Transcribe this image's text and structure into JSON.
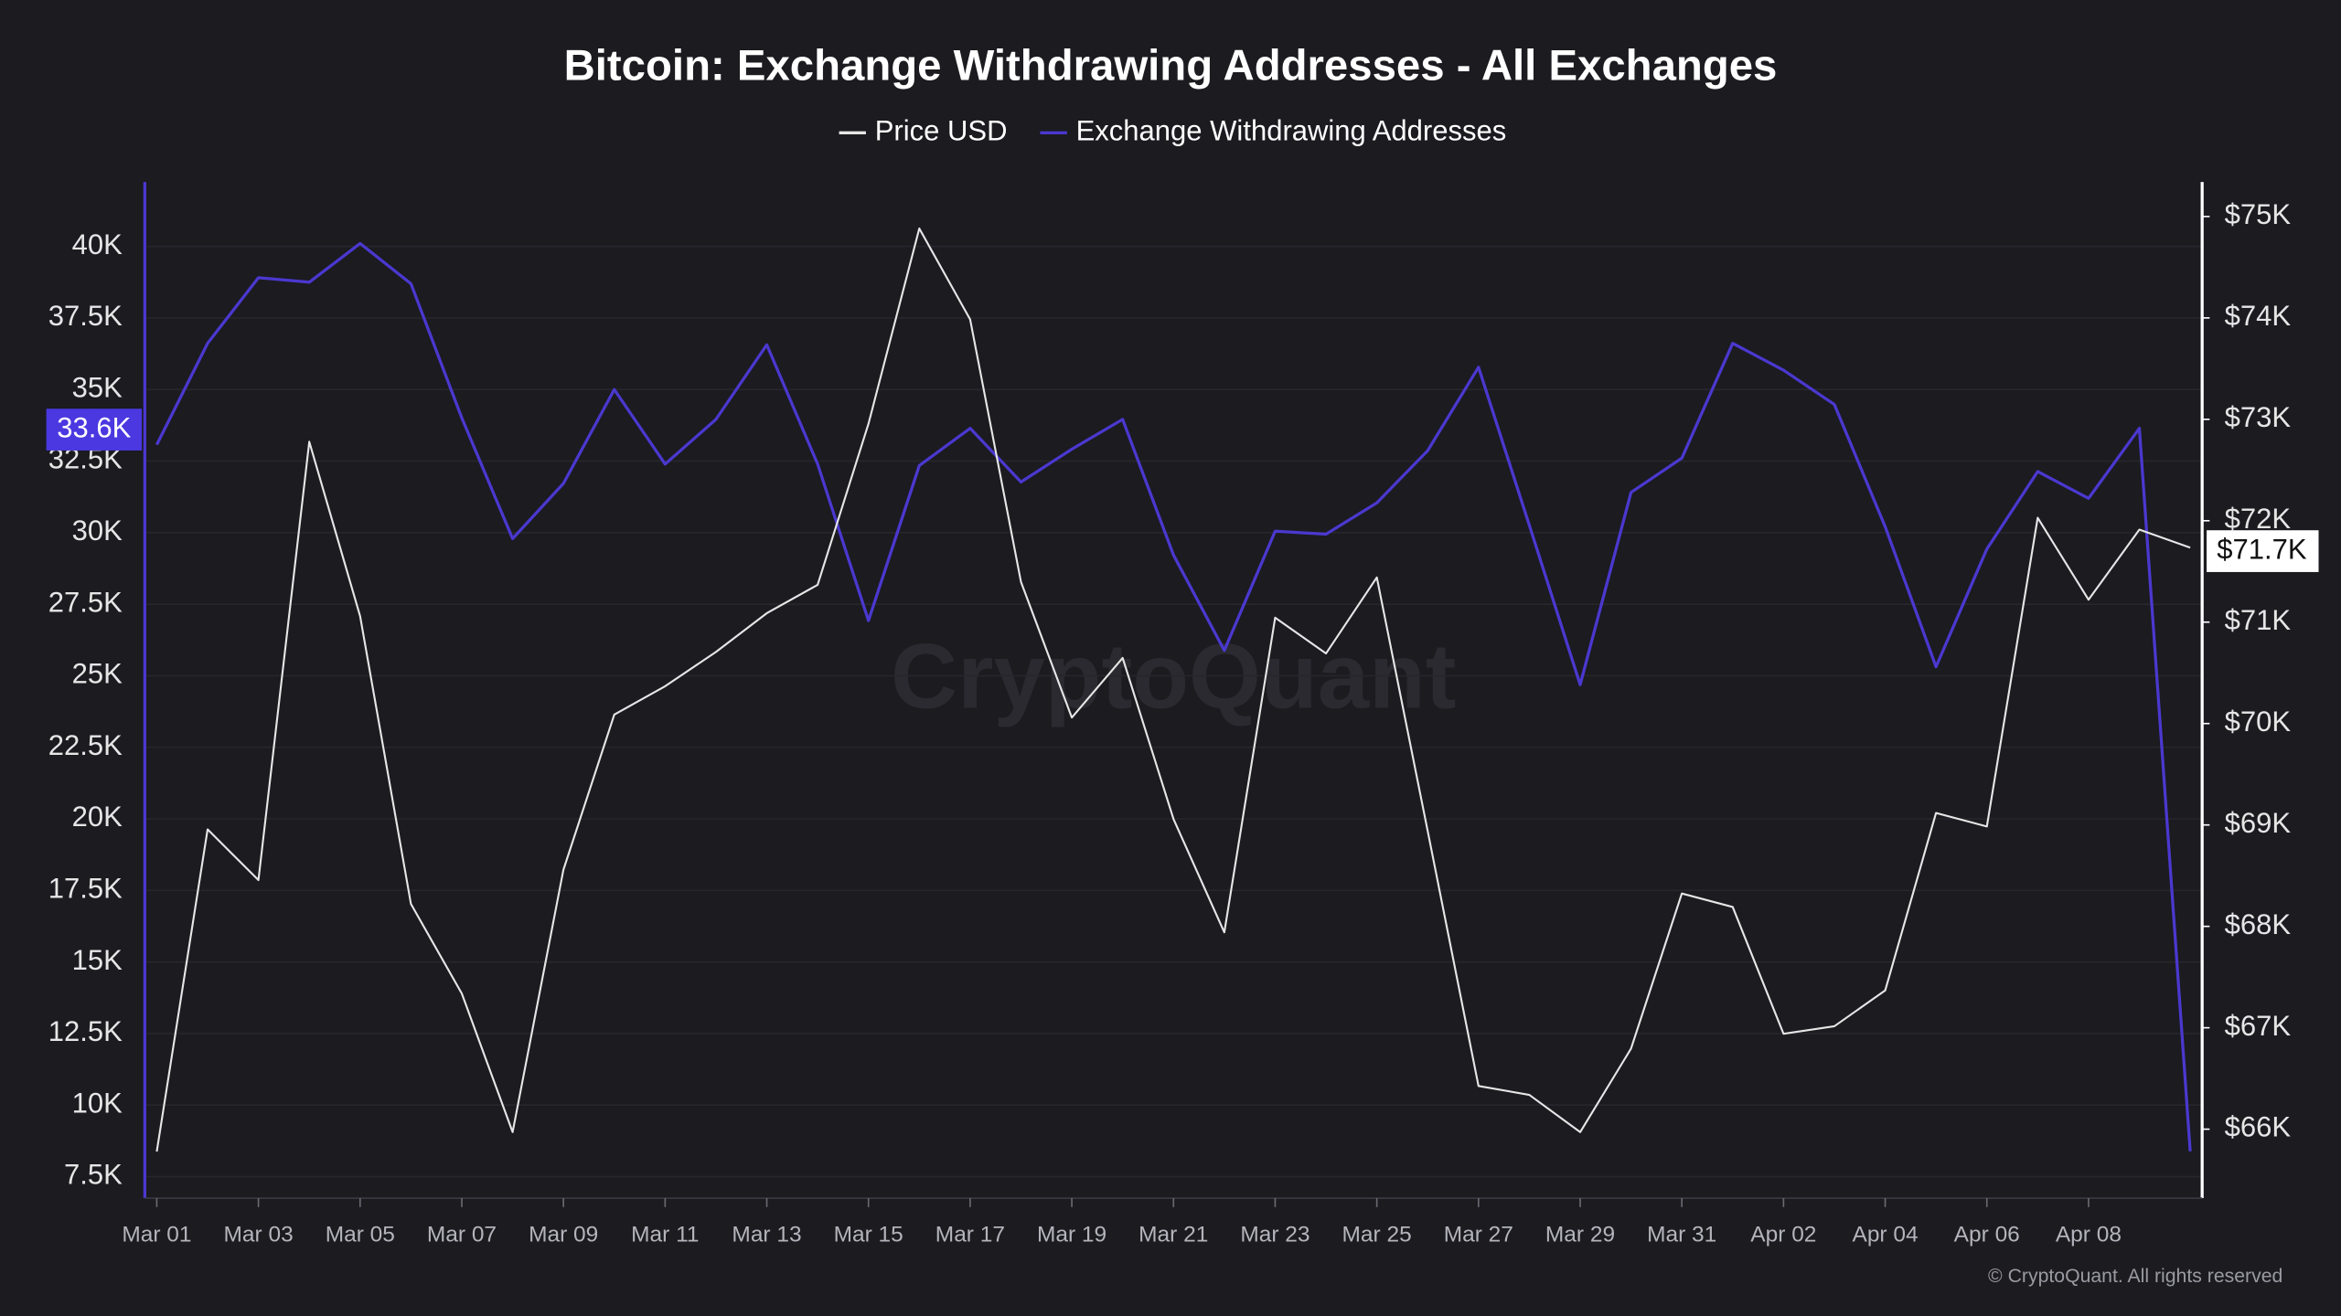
{
  "chart_data": {
    "type": "line",
    "title": "Bitcoin: Exchange Withdrawing Addresses - All Exchanges",
    "watermark": "CryptoQuant",
    "copyright": "© CryptoQuant. All rights reserved",
    "categories": [
      "Mar 01",
      null,
      "Mar 03",
      null,
      "Mar 05",
      null,
      "Mar 07",
      null,
      "Mar 09",
      null,
      "Mar 11",
      null,
      "Mar 13",
      null,
      "Mar 15",
      null,
      "Mar 17",
      null,
      "Mar 19",
      null,
      "Mar 21",
      null,
      "Mar 23",
      null,
      "Mar 25",
      null,
      "Mar 27",
      null,
      "Mar 29",
      null,
      "Mar 31",
      null,
      "Apr 02",
      null,
      "Apr 04",
      null,
      "Apr 06",
      null,
      "Apr 08",
      null,
      null
    ],
    "series": [
      {
        "name": "Price USD",
        "color": "#e6e6e6",
        "axis": "y2",
        "values": [
          65779,
          68956,
          68456,
          72779,
          71059,
          68221,
          67338,
          65971,
          68559,
          70088,
          70368,
          70706,
          71088,
          71368,
          72956,
          74882,
          73985,
          71397,
          70059,
          70647,
          69059,
          67941,
          71044,
          70691,
          71441,
          68941,
          66426,
          66338,
          65971,
          66794,
          68324,
          68191,
          66941,
          67015,
          67368,
          69118,
          68985,
          72029,
          71221,
          71912,
          71735
        ]
      },
      {
        "name": "Exchange Withdrawing Addresses",
        "color": "#4b38cf",
        "values": [
          33073,
          36615,
          38906,
          38750,
          40104,
          38698,
          34010,
          29792,
          31719,
          35000,
          32396,
          33958,
          36563,
          32396,
          26927,
          32344,
          33646,
          31771,
          32917,
          33958,
          29219,
          25885,
          30052,
          29948,
          31042,
          32865,
          35781,
          30260,
          24688,
          31406,
          32604,
          36615,
          35677,
          34479,
          30208,
          25313,
          29427,
          32135,
          31198,
          33646,
          8385
        ]
      }
    ],
    "ylim": [
      6750,
      42250
    ],
    "yticks": [
      {
        "value": 7500,
        "label": "7.5K"
      },
      {
        "value": 10000,
        "label": "10K"
      },
      {
        "value": 12500,
        "label": "12.5K"
      },
      {
        "value": 15000,
        "label": "15K"
      },
      {
        "value": 17500,
        "label": "17.5K"
      },
      {
        "value": 20000,
        "label": "20K"
      },
      {
        "value": 22500,
        "label": "22.5K"
      },
      {
        "value": 25000,
        "label": "25K"
      },
      {
        "value": 27500,
        "label": "27.5K"
      },
      {
        "value": 30000,
        "label": "30K"
      },
      {
        "value": 32500,
        "label": "32.5K"
      },
      {
        "value": 35000,
        "label": "35K"
      },
      {
        "value": 37500,
        "label": "37.5K"
      },
      {
        "value": 40000,
        "label": "40K"
      }
    ],
    "y2lim": [
      65320,
      75340
    ],
    "y2ticks": [
      {
        "value": 66000,
        "label": "$66K"
      },
      {
        "value": 67000,
        "label": "$67K"
      },
      {
        "value": 68000,
        "label": "$68K"
      },
      {
        "value": 69000,
        "label": "$69K"
      },
      {
        "value": 70000,
        "label": "$70K"
      },
      {
        "value": 71000,
        "label": "$71K"
      },
      {
        "value": 72000,
        "label": "$72K"
      },
      {
        "value": 73000,
        "label": "$73K"
      },
      {
        "value": 74000,
        "label": "$74K"
      },
      {
        "value": 75000,
        "label": "$75K"
      }
    ],
    "y_badge": {
      "value": 33600,
      "label": "33.6K"
    },
    "y2_badge": {
      "value": 71700,
      "label": "$71.7K"
    },
    "grid": true
  }
}
